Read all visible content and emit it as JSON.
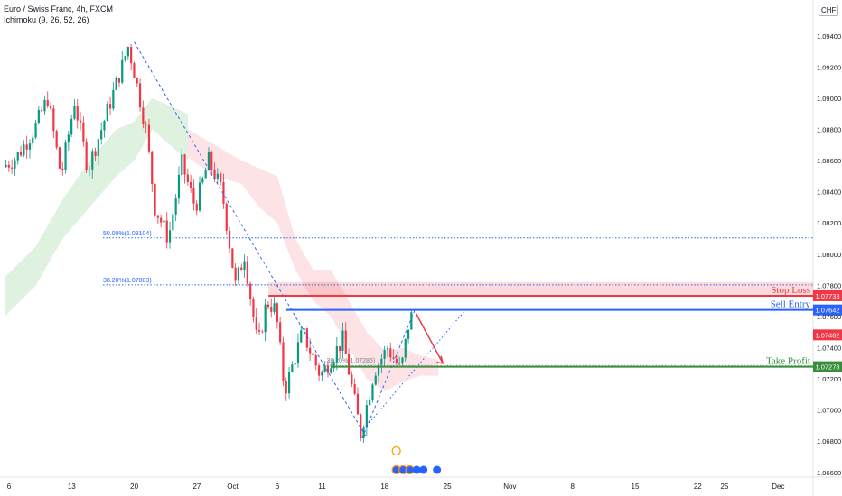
{
  "chart_data": {
    "type": "candlestick",
    "symbol_title": "Euro / Swiss Franc, 4h, FXCM",
    "indicator_label": "Ichimoku (9, 26, 52, 26)",
    "currency": "CHF",
    "y_axis": {
      "ticks": [
        "1.09400",
        "1.09200",
        "1.09000",
        "1.08800",
        "1.08600",
        "1.08400",
        "1.08200",
        "1.08000",
        "1.07800",
        "1.07600",
        "1.07400",
        "1.07200",
        "1.07000",
        "1.06800",
        "1.06600"
      ],
      "min": 1.0657,
      "max": 1.0963
    },
    "x_axis": {
      "ticks": [
        {
          "label": "6",
          "day": 0
        },
        {
          "label": "13",
          "day": 7
        },
        {
          "label": "20",
          "day": 14
        },
        {
          "label": "27",
          "day": 21
        },
        {
          "label": "Oct",
          "day": 25
        },
        {
          "label": "6",
          "day": 30
        },
        {
          "label": "11",
          "day": 35
        },
        {
          "label": "18",
          "day": 42
        },
        {
          "label": "25",
          "day": 49
        },
        {
          "label": "Nov",
          "day": 56
        },
        {
          "label": "8",
          "day": 63
        },
        {
          "label": "15",
          "day": 70
        },
        {
          "label": "22",
          "day": 77
        },
        {
          "label": "25",
          "day": 80
        },
        {
          "label": "Dec",
          "day": 86
        }
      ]
    },
    "price_path": [
      [
        -0.5,
        1.0856
      ],
      [
        1,
        1.0862
      ],
      [
        3,
        1.088
      ],
      [
        4.5,
        1.09
      ],
      [
        6,
        1.085
      ],
      [
        7.5,
        1.0898
      ],
      [
        9,
        1.0855
      ],
      [
        10.5,
        1.088
      ],
      [
        12.5,
        1.0915
      ],
      [
        13.5,
        1.0933
      ],
      [
        14,
        1.0922
      ],
      [
        15.5,
        1.088
      ],
      [
        16.5,
        1.083
      ],
      [
        18,
        1.081
      ],
      [
        19.5,
        1.0858
      ],
      [
        21,
        1.083
      ],
      [
        22.5,
        1.086
      ],
      [
        24,
        1.084
      ],
      [
        25.5,
        1.078
      ],
      [
        26.5,
        1.08
      ],
      [
        28,
        1.074
      ],
      [
        29,
        1.077
      ],
      [
        30,
        1.0764
      ],
      [
        31,
        1.0712
      ],
      [
        33,
        1.075
      ],
      [
        35,
        1.0722
      ],
      [
        37.5,
        1.0745
      ],
      [
        39.5,
        1.0685
      ],
      [
        41,
        1.0725
      ],
      [
        42.5,
        1.074
      ],
      [
        44,
        1.0725
      ],
      [
        45,
        1.076
      ]
    ],
    "levels": [
      {
        "name": "Stop Loss",
        "price": 1.07733,
        "label": "1.07733",
        "color": "#f23645",
        "zone_top": 1.0782
      },
      {
        "name": "Sell Entry",
        "price": 1.07642,
        "label": "1.07642",
        "color": "#2962ff"
      },
      {
        "name": "Take Profit",
        "price": 1.07278,
        "label": "1.07278",
        "color": "#388e3c"
      }
    ],
    "current_price": {
      "price": 1.07482,
      "label": "1.07482",
      "color": "#f23645"
    },
    "fib_levels": [
      {
        "label": "50.00%(1.08104)",
        "price": 1.08104,
        "from_day": 10.5
      },
      {
        "label": "38.20%(1.07803)",
        "price": 1.07803,
        "from_day": 10.5
      },
      {
        "label": "38.20%(1.07286)",
        "price": 1.07286,
        "from_day": 35.5
      }
    ],
    "trend_lines": [
      {
        "from": [
          14,
          1.0936
        ],
        "to": [
          40,
          1.0682
        ],
        "style": "dashed"
      },
      {
        "from": [
          39.5,
          1.0682
        ],
        "to": [
          45.5,
          1.0766
        ],
        "style": "dashed"
      },
      {
        "from": [
          40,
          1.069
        ],
        "to": [
          51,
          1.0764
        ],
        "style": "dotted"
      }
    ],
    "projection_arrow": {
      "from": [
        45.5,
        1.0762
      ],
      "to": [
        48.5,
        1.073
      ],
      "color": "#f23645"
    },
    "ichimoku_cloud": {
      "bullish": [
        [
          -0.5,
          1.076,
          1.0785
        ],
        [
          3,
          1.078,
          1.0805
        ],
        [
          6,
          1.081,
          1.0835
        ],
        [
          9,
          1.083,
          1.086
        ],
        [
          12,
          1.085,
          1.088
        ],
        [
          14,
          1.086,
          1.0885
        ],
        [
          16,
          1.088,
          1.09
        ],
        [
          18,
          1.087,
          1.0895
        ],
        [
          20,
          1.086,
          1.089
        ]
      ],
      "bearish": [
        [
          20,
          1.0862,
          1.088
        ],
        [
          23,
          1.085,
          1.087
        ],
        [
          26,
          1.0845,
          1.086
        ],
        [
          28,
          1.083,
          1.0855
        ],
        [
          30,
          1.082,
          1.085
        ],
        [
          32,
          1.079,
          1.081
        ],
        [
          34,
          1.077,
          1.079
        ],
        [
          36,
          1.076,
          1.079
        ],
        [
          38,
          1.074,
          1.077
        ],
        [
          40,
          1.072,
          1.075
        ],
        [
          42,
          1.0712,
          1.0738
        ],
        [
          44,
          1.0718,
          1.074
        ],
        [
          46,
          1.0722,
          1.0735
        ],
        [
          48,
          1.0722,
          1.0732
        ]
      ]
    }
  }
}
